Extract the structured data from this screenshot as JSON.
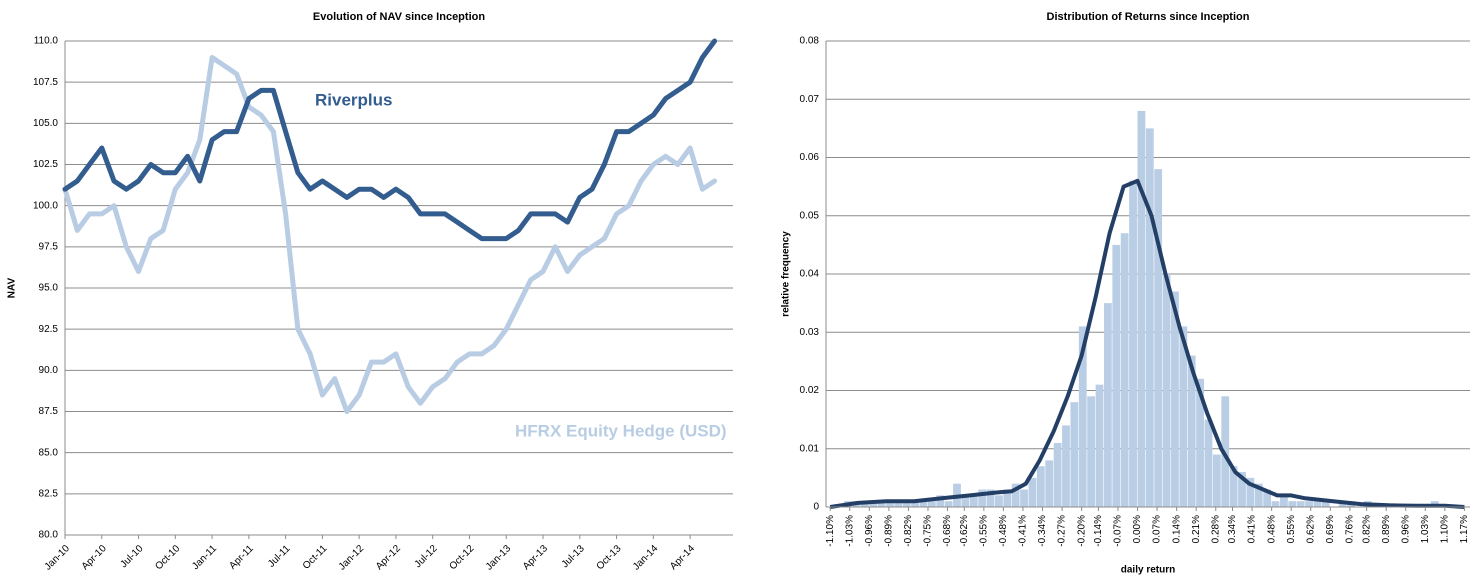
{
  "chart_data": [
    {
      "type": "line",
      "title": "Evolution of NAV since Inception",
      "y_label": "NAV",
      "categories": [
        "Jan-10",
        null,
        null,
        "Apr-10",
        null,
        null,
        "Jul-10",
        null,
        null,
        "Oct-10",
        null,
        null,
        "Jan-11",
        null,
        null,
        "Apr-11",
        null,
        null,
        "Jul-11",
        null,
        null,
        "Oct-11",
        null,
        null,
        "Jan-12",
        null,
        null,
        "Apr-12",
        null,
        null,
        "Jul-12",
        null,
        null,
        "Oct-12",
        null,
        null,
        "Jan-13",
        null,
        null,
        "Apr-13",
        null,
        null,
        "Jul-13",
        null,
        null,
        "Oct-13",
        null,
        null,
        "Jan-14",
        null,
        null,
        "Apr-14",
        null,
        null
      ],
      "series": [
        {
          "name": "Riverplus",
          "color": "#335d8f",
          "values": [
            101.0,
            101.5,
            102.5,
            103.5,
            101.5,
            101.0,
            101.5,
            102.5,
            102.0,
            102.0,
            103.0,
            101.5,
            104.0,
            104.5,
            104.5,
            106.5,
            107.0,
            107.0,
            104.5,
            102.0,
            101.0,
            101.5,
            101.0,
            100.5,
            101.0,
            101.0,
            100.5,
            101.0,
            100.5,
            99.5,
            99.5,
            99.5,
            99.0,
            98.5,
            98.0,
            98.0,
            98.0,
            98.5,
            99.5,
            99.5,
            99.5,
            99.0,
            100.5,
            101.0,
            102.5,
            104.5,
            104.5,
            105.0,
            105.5,
            106.5,
            107.0,
            107.5,
            109.0,
            110.0
          ]
        },
        {
          "name": "HFRX Equity Hedge (USD)",
          "color": "#b8cce4",
          "values": [
            101.0,
            98.5,
            99.5,
            99.5,
            100.0,
            97.5,
            96.0,
            98.0,
            98.5,
            101.0,
            102.0,
            104.0,
            109.0,
            108.5,
            108.0,
            106.0,
            105.5,
            104.5,
            99.5,
            92.5,
            91.0,
            88.5,
            89.5,
            87.5,
            88.5,
            90.5,
            90.5,
            91.0,
            89.0,
            88.0,
            89.0,
            89.5,
            90.5,
            91.0,
            91.0,
            91.5,
            92.5,
            94.0,
            95.5,
            96.0,
            97.5,
            96.0,
            97.0,
            97.5,
            98.0,
            99.5,
            100.0,
            101.5,
            102.5,
            103.0,
            102.5,
            103.5,
            101.0,
            101.5
          ]
        }
      ],
      "ylim": [
        80,
        110
      ],
      "yticks": [
        {
          "value": 80,
          "label": "80.0"
        },
        82.5,
        {
          "value": 85,
          "label": "85.0"
        },
        87.5,
        {
          "value": 90,
          "label": "90.0"
        },
        92.5,
        {
          "value": 95,
          "label": "95.0"
        },
        97.5,
        {
          "value": 100,
          "label": "100.0"
        },
        102.5,
        {
          "value": 105,
          "label": "105.0"
        },
        107.5,
        {
          "value": 110,
          "label": "110.0"
        }
      ],
      "grid": true
    },
    {
      "type": "histogram",
      "title": "Distribution of Returns since Inception",
      "x_label": "daily return",
      "y_label": "relative frequency",
      "color": "#b9cde5",
      "bins": [
        -1.11,
        -1.08,
        -1.05,
        -1.02,
        -0.99,
        -0.96,
        -0.93,
        -0.9,
        -0.87,
        -0.84,
        -0.81,
        -0.78,
        -0.75,
        -0.72,
        -0.69,
        -0.66,
        -0.63,
        -0.6,
        -0.57,
        -0.54,
        -0.51,
        -0.48,
        -0.45,
        -0.42,
        -0.39,
        -0.36,
        -0.33,
        -0.3,
        -0.27,
        -0.24,
        -0.21,
        -0.18,
        -0.15,
        -0.12,
        -0.09,
        -0.06,
        -0.03,
        0,
        0.03,
        0.06,
        0.09,
        0.12,
        0.15,
        0.18,
        0.21,
        0.24,
        0.27,
        0.3,
        0.33,
        0.36,
        0.39,
        0.42,
        0.45,
        0.48,
        0.51,
        0.54,
        0.57,
        0.6,
        0.63,
        0.66,
        0.69,
        0.72,
        0.75,
        0.78,
        0.81,
        0.84,
        0.87,
        0.9,
        0.93,
        0.96,
        0.99,
        1.02,
        1.05,
        1.08,
        1.11,
        1.14,
        1.17
      ],
      "values": [
        0,
        0,
        0.001,
        0.001,
        0.001,
        0.001,
        0.001,
        0.001,
        0.001,
        0.001,
        0.001,
        0.001,
        0.001,
        0.002,
        0.001,
        0.004,
        0.002,
        0.002,
        0.003,
        0.003,
        0.002,
        0.003,
        0.004,
        0.003,
        0.005,
        0.007,
        0.008,
        0.011,
        0.014,
        0.018,
        0.031,
        0.019,
        0.021,
        0.035,
        0.045,
        0.047,
        0.056,
        0.068,
        0.065,
        0.058,
        0.04,
        0.037,
        0.031,
        0.026,
        0.022,
        0.015,
        0.009,
        0.019,
        0.007,
        0.006,
        0.005,
        0.004,
        0.003,
        0.001,
        0.002,
        0.001,
        0.001,
        0.001,
        0.001,
        0.001,
        0,
        0.001,
        0.001,
        0,
        0.001,
        0,
        0,
        0,
        0,
        0,
        0,
        0,
        0.001,
        0,
        0,
        0
      ],
      "curve": {
        "color": "#243f66",
        "x": [
          -1.1,
          -1.0,
          -0.9,
          -0.8,
          -0.7,
          -0.6,
          -0.5,
          -0.45,
          -0.4,
          -0.35,
          -0.3,
          -0.25,
          -0.2,
          -0.15,
          -0.1,
          -0.05,
          0,
          0.05,
          0.1,
          0.15,
          0.2,
          0.25,
          0.3,
          0.35,
          0.4,
          0.45,
          0.5,
          0.55,
          0.6,
          0.7,
          0.8,
          0.9,
          1.0,
          1.1,
          1.17
        ],
        "values": [
          0.0,
          0.0007,
          0.001,
          0.001,
          0.0015,
          0.002,
          0.0025,
          0.0027,
          0.004,
          0.008,
          0.013,
          0.019,
          0.026,
          0.036,
          0.047,
          0.055,
          0.056,
          0.05,
          0.04,
          0.031,
          0.023,
          0.016,
          0.01,
          0.006,
          0.004,
          0.003,
          0.002,
          0.002,
          0.0015,
          0.001,
          0.0005,
          0.0003,
          0.0002,
          0.0002,
          0.0
        ]
      },
      "xlim": [
        -1.115,
        1.19
      ],
      "xticks": [
        {
          "value": -1.1,
          "label": "-1.10%"
        },
        {
          "value": -1.03,
          "label": "-1.03%"
        },
        {
          "value": -0.96,
          "label": "-0.96%"
        },
        {
          "value": -0.89,
          "label": "-0.89%"
        },
        {
          "value": -0.82,
          "label": "-0.82%"
        },
        {
          "value": -0.75,
          "label": "-0.75%"
        },
        {
          "value": -0.68,
          "label": "-0.68%"
        },
        {
          "value": -0.62,
          "label": "-0.62%"
        },
        {
          "value": -0.55,
          "label": "-0.55%"
        },
        {
          "value": -0.48,
          "label": "-0.48%"
        },
        {
          "value": -0.41,
          "label": "-0.41%"
        },
        {
          "value": -0.34,
          "label": "-0.34%"
        },
        {
          "value": -0.27,
          "label": "-0.27%"
        },
        {
          "value": -0.2,
          "label": "-0.20%"
        },
        {
          "value": -0.14,
          "label": "-0.14%"
        },
        {
          "value": -0.07,
          "label": "-0.07%"
        },
        {
          "value": 0.0,
          "label": "0.00%"
        },
        {
          "value": 0.07,
          "label": "0.07%"
        },
        {
          "value": 0.14,
          "label": "0.14%"
        },
        {
          "value": 0.21,
          "label": "0.21%"
        },
        {
          "value": 0.28,
          "label": "0.28%"
        },
        {
          "value": 0.34,
          "label": "0.34%"
        },
        {
          "value": 0.41,
          "label": "0.41%"
        },
        {
          "value": 0.48,
          "label": "0.48%"
        },
        {
          "value": 0.55,
          "label": "0.55%"
        },
        {
          "value": 0.62,
          "label": "0.62%"
        },
        {
          "value": 0.69,
          "label": "0.69%"
        },
        {
          "value": 0.76,
          "label": "0.76%"
        },
        {
          "value": 0.82,
          "label": "0.82%"
        },
        {
          "value": 0.89,
          "label": "0.89%"
        },
        {
          "value": 0.96,
          "label": "0.96%"
        },
        {
          "value": 1.03,
          "label": "1.03%"
        },
        {
          "value": 1.1,
          "label": "1.10%"
        },
        {
          "value": 1.17,
          "label": "1.17%"
        }
      ],
      "ylim": [
        0,
        0.08
      ],
      "yticks": [
        0,
        0.01,
        0.02,
        0.03,
        0.04,
        0.05,
        0.06,
        0.07,
        0.08
      ],
      "grid": true
    }
  ]
}
